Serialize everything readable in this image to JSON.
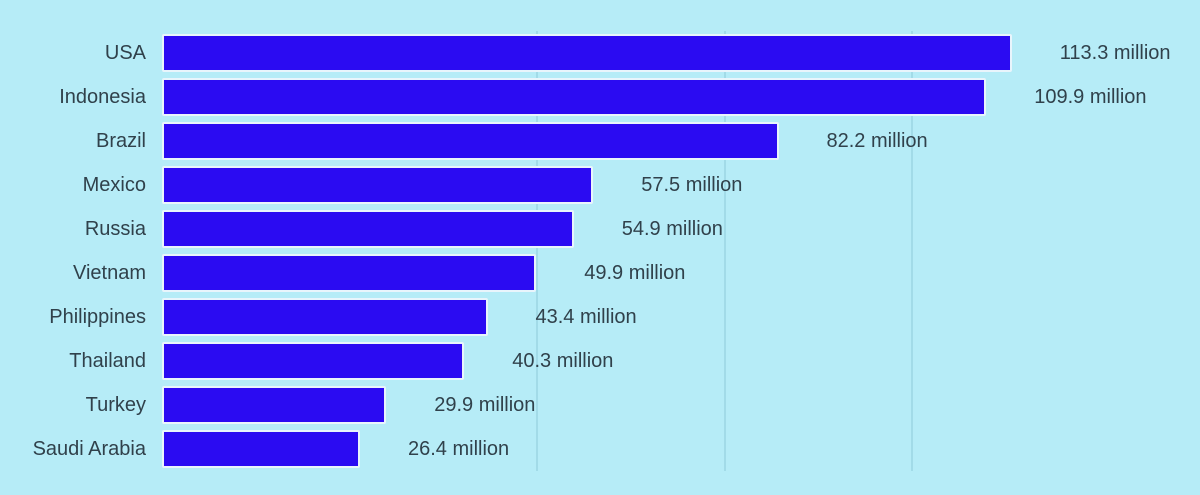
{
  "chart_data": {
    "type": "bar",
    "orientation": "horizontal",
    "unit": "million",
    "categories": [
      "USA",
      "Indonesia",
      "Brazil",
      "Mexico",
      "Russia",
      "Vietnam",
      "Philippines",
      "Thailand",
      "Turkey",
      "Saudi Arabia"
    ],
    "values": [
      113.3,
      109.9,
      82.2,
      57.5,
      54.9,
      49.9,
      43.4,
      40.3,
      29.9,
      26.4
    ],
    "value_labels": [
      "113.3 million",
      "109.9 million",
      "82.2 million",
      "57.5 million",
      "54.9 million",
      "49.9 million",
      "43.4 million",
      "40.3 million",
      "29.9 million",
      "26.4 million"
    ],
    "axis": {
      "xmin": 0,
      "xmax": 125,
      "gridline_step": 25,
      "visible_gridline_values": [
        50,
        75,
        100
      ]
    },
    "legend": "none",
    "grid": "vertical-only",
    "colors": {
      "background": "#b6ecf7",
      "bar": "#2b0bf2",
      "bar_outline": "#e9f5fc",
      "text": "#30414b",
      "gridline": "#a2dbe8"
    }
  }
}
